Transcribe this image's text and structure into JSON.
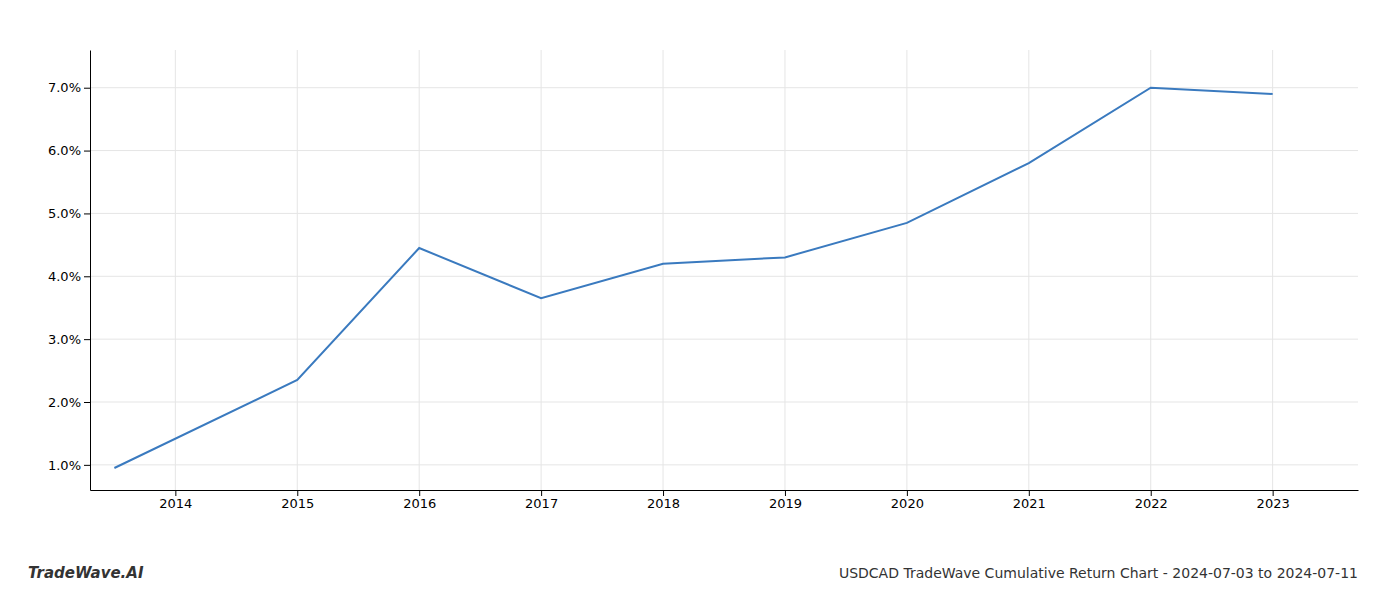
{
  "chart_data": {
    "type": "line",
    "title": "USDCAD TradeWave Cumulative Return Chart - 2024-07-03 to 2024-07-11",
    "annotations": [
      "TradeWave.AI"
    ],
    "x": [
      2013.5,
      2015.0,
      2016.0,
      2017.0,
      2018.0,
      2019.0,
      2020.0,
      2021.0,
      2022.0,
      2023.0
    ],
    "values": [
      0.0095,
      0.0235,
      0.0445,
      0.0365,
      0.042,
      0.043,
      0.0485,
      0.058,
      0.07,
      0.069
    ],
    "color": "#3a7abf",
    "xlim": [
      2013.3,
      2023.7
    ],
    "ylim": [
      0.006,
      0.076
    ],
    "xticks": [
      2014,
      2015,
      2016,
      2017,
      2018,
      2019,
      2020,
      2021,
      2022,
      2023
    ],
    "yticks": [
      {
        "value": 0.01,
        "label": "1.0%"
      },
      {
        "value": 0.02,
        "label": "2.0%"
      },
      {
        "value": 0.03,
        "label": "3.0%"
      },
      {
        "value": 0.04,
        "label": "4.0%"
      },
      {
        "value": 0.05,
        "label": "5.0%"
      },
      {
        "value": 0.06,
        "label": "6.0%"
      },
      {
        "value": 0.07,
        "label": "7.0%"
      }
    ],
    "grid": true
  }
}
